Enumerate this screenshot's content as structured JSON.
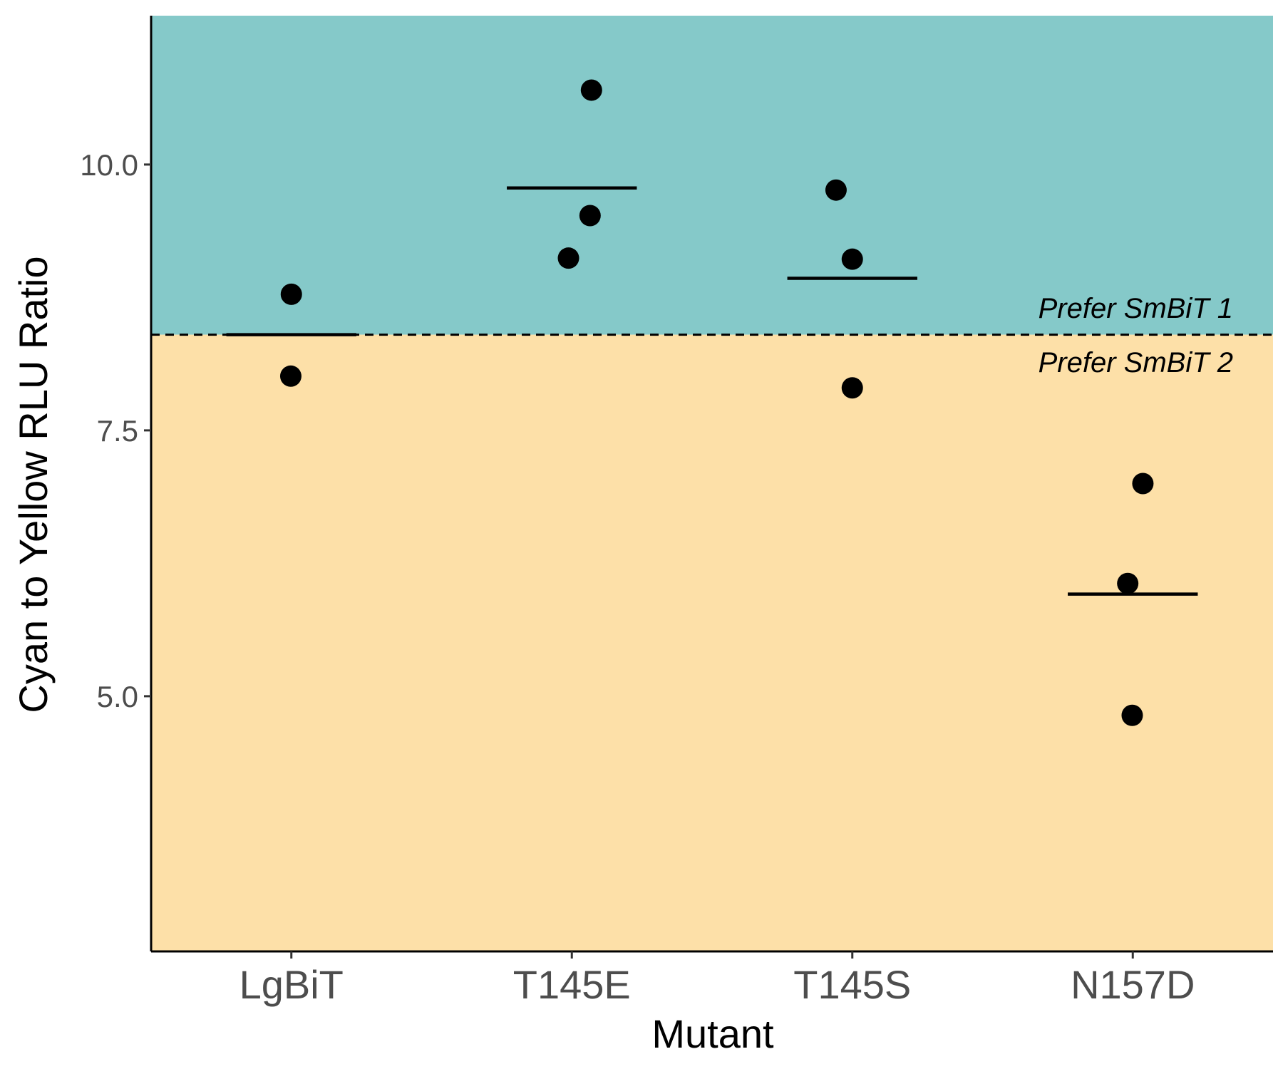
{
  "chart_data": {
    "type": "scatter",
    "title": "",
    "xlabel": "Mutant",
    "ylabel": "Cyan to Yellow RLU Ratio",
    "categories": [
      "LgBiT",
      "T145E",
      "T145S",
      "N157D"
    ],
    "ylim": [
      2.6,
      11.4
    ],
    "yticks": [
      "5.0",
      "7.5",
      "10.0"
    ],
    "grid": false,
    "points": [
      {
        "category": "LgBiT",
        "values": [
          8.78,
          8.01
        ]
      },
      {
        "category": "T145E",
        "values": [
          10.7,
          9.52,
          9.12
        ]
      },
      {
        "category": "T145S",
        "values": [
          9.76,
          9.11,
          7.9
        ]
      },
      {
        "category": "N157D",
        "values": [
          7.0,
          6.06,
          4.82
        ]
      }
    ],
    "means": {
      "LgBiT": 8.4,
      "T145E": 9.78,
      "T145S": 8.93,
      "N157D": 5.96
    },
    "threshold": 8.4,
    "regions": {
      "above": {
        "label": "Prefer SmBiT 1",
        "color": "#85c9c9"
      },
      "below": {
        "label": "Prefer SmBiT 2",
        "color": "#fde0a8"
      }
    },
    "point_color": "#000000"
  }
}
